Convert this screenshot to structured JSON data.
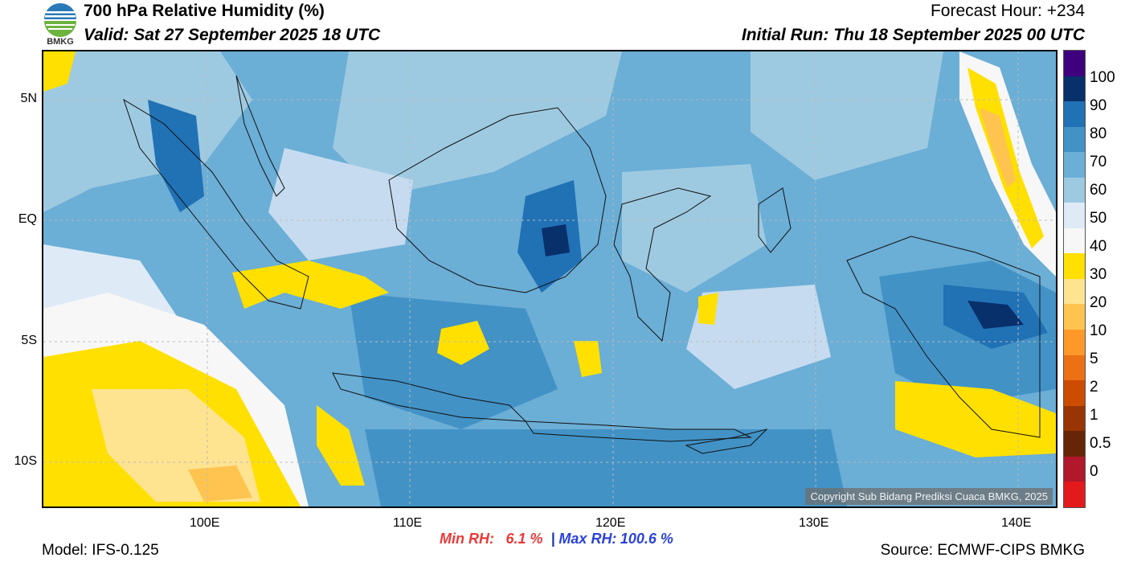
{
  "header": {
    "title": "700 hPa Relative Humidity (%)",
    "valid": "Valid: Sat 27 September 2025 18 UTC",
    "forecast_hour": "Forecast Hour: +234",
    "initial_run": "Initial Run: Thu 18 September 2025 00 UTC"
  },
  "logo": {
    "label": "BMKG",
    "icon": "bmkg-logo-icon"
  },
  "axes": {
    "lat_labels": [
      "5N",
      "EQ",
      "5S",
      "10S"
    ],
    "lon_labels": [
      "100E",
      "110E",
      "120E",
      "130E",
      "140E"
    ]
  },
  "colorbar": {
    "labels": [
      "100",
      "90",
      "80",
      "70",
      "60",
      "50",
      "40",
      "30",
      "20",
      "10",
      "5",
      "2",
      "1",
      "0.5",
      "0"
    ],
    "colors": [
      "#3f007d",
      "#08306b",
      "#2171b5",
      "#4292c6",
      "#6baed6",
      "#9ecae1",
      "#deebf7",
      "#f7f7f7",
      "#ffe000",
      "#fee391",
      "#fec44f",
      "#fe9929",
      "#ec7014",
      "#cc4c02",
      "#993404",
      "#662506",
      "#b2182b",
      "#e31a1c"
    ]
  },
  "copyright": "Copyright Sub Bidang Prediksi Cuaca BMKG, 2025",
  "stats": {
    "min_label": "Min RH:",
    "min_value": "6.1 %",
    "separator": "|",
    "max_label": "Max RH:",
    "max_value": "100.6 %"
  },
  "footer": {
    "model": "Model: IFS-0.125",
    "source": "Source: ECMWF-CIPS BMKG"
  }
}
